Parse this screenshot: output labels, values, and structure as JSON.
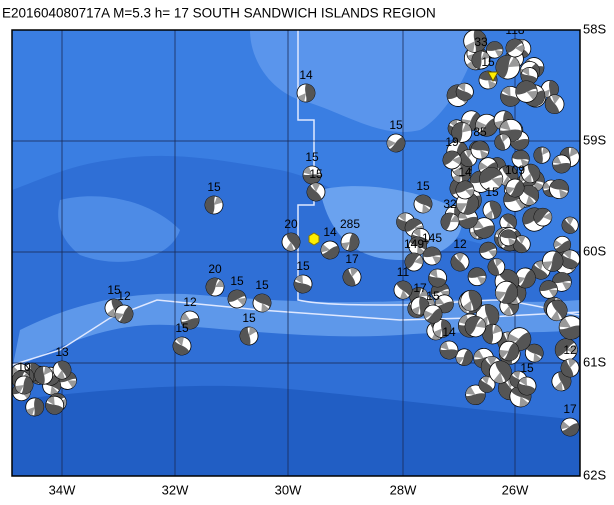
{
  "title": "E201604080717A M=5.3 h= 17 SOUTH SANDWICH ISLANDS REGION",
  "lat_labels": [
    "58S",
    "59S",
    "60S",
    "61S",
    "62S"
  ],
  "lon_labels": [
    "34W",
    "32W",
    "30W",
    "28W",
    "26W"
  ],
  "depth_labels": [
    "14",
    "15",
    "15",
    "15",
    "15",
    "19",
    "85",
    "20",
    "285",
    "14",
    "15",
    "17",
    "20",
    "15",
    "15",
    "15",
    "12",
    "12",
    "15",
    "15",
    "149",
    "145",
    "11",
    "17",
    "15",
    "14",
    "12",
    "33",
    "118",
    "15",
    "13",
    "10",
    "17",
    "15",
    "12",
    "32",
    "14",
    "15",
    "15",
    "109"
  ]
}
